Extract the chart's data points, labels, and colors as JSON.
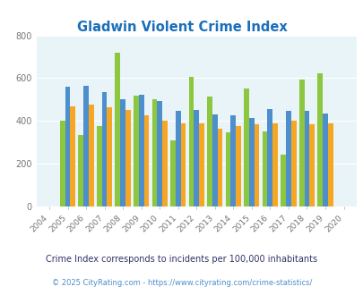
{
  "title": "Gladwin Violent Crime Index",
  "years": [
    "2004",
    "2005",
    "2006",
    "2007",
    "2008",
    "2009",
    "2010",
    "2011",
    "2012",
    "2013",
    "2014",
    "2015",
    "2016",
    "2017",
    "2018",
    "2019",
    "2020"
  ],
  "gladwin": [
    0,
    400,
    335,
    375,
    720,
    520,
    500,
    310,
    607,
    515,
    345,
    553,
    350,
    243,
    594,
    622,
    0
  ],
  "michigan": [
    0,
    560,
    565,
    537,
    500,
    522,
    495,
    447,
    452,
    430,
    428,
    415,
    457,
    448,
    448,
    436,
    0
  ],
  "national": [
    0,
    467,
    475,
    465,
    450,
    426,
    400,
    390,
    390,
    365,
    375,
    383,
    390,
    400,
    383,
    387,
    0
  ],
  "gladwin_color": "#8dc63f",
  "michigan_color": "#4d8fcc",
  "national_color": "#f5a623",
  "bg_color": "#e8f4f8",
  "title_color": "#1a6fba",
  "ylim": [
    0,
    800
  ],
  "yticks": [
    0,
    200,
    400,
    600,
    800
  ],
  "subtitle": "Crime Index corresponds to incidents per 100,000 inhabitants",
  "footer": "© 2025 CityRating.com - https://www.cityrating.com/crime-statistics/",
  "subtitle_color": "#333366",
  "footer_color": "#4d8fcc",
  "legend_label_color": "#333333"
}
